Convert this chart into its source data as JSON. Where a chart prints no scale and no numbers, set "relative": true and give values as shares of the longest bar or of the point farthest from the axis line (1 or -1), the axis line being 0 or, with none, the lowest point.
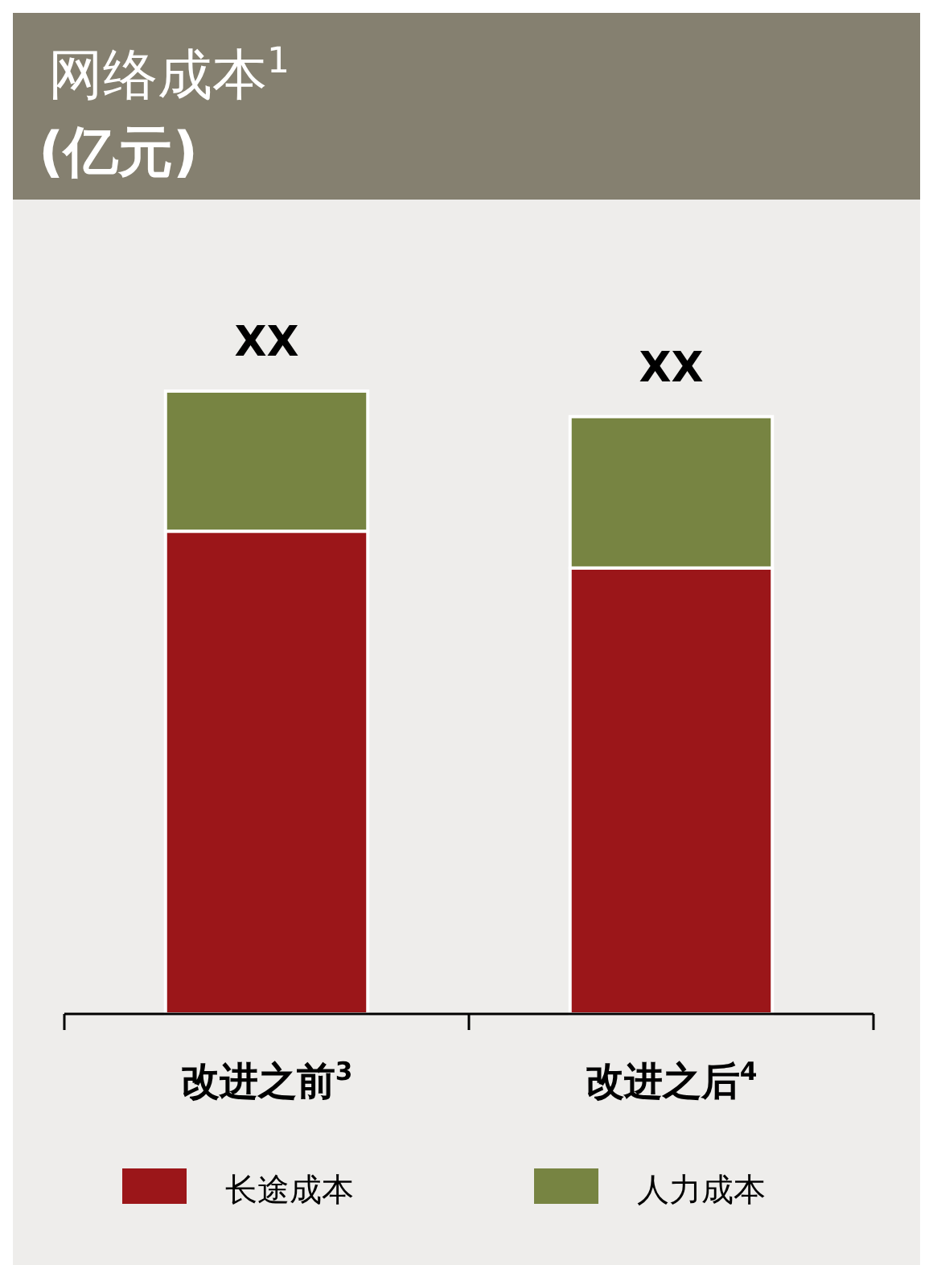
{
  "chart_data": {
    "type": "bar",
    "title": "网络成本$^{1}$",
    "subtitle": "(亿元)",
    "categories": [
      "改进之前$^{3}$",
      "改进之后$^{4}$"
    ],
    "stacked": true,
    "relative": true,
    "legend": "bottom",
    "totals": [
      "XX",
      "XX"
    ],
    "series": [
      {
        "name": "长途成本",
        "color": "#9b1619",
        "values": [
          0.775,
          0.716
        ]
      },
      {
        "name": "人力成本",
        "color": "#778442",
        "values": [
          0.225,
          0.243
        ]
      }
    ]
  }
}
